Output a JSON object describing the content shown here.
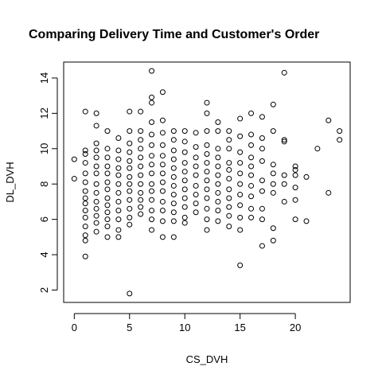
{
  "chart_data": {
    "type": "scatter",
    "title": "Comparing Delivery Time and Customer's Order",
    "xlabel": "CS_DVH",
    "ylabel": "DL_DVH",
    "xlim": [
      -0.96,
      24.96
    ],
    "ylim": [
      1.3,
      14.9
    ],
    "xticks": [
      0,
      5,
      10,
      15,
      20
    ],
    "yticks": [
      2,
      4,
      6,
      8,
      10,
      12,
      14
    ],
    "color": "#000000",
    "x": [
      0,
      0,
      1,
      1,
      1,
      1,
      1,
      1,
      1,
      1,
      1,
      1,
      1,
      1,
      1,
      1,
      1,
      2,
      2,
      2,
      2,
      2,
      2,
      2,
      2,
      2,
      2,
      2,
      2,
      2,
      2,
      3,
      3,
      3,
      3,
      3,
      3,
      3,
      3,
      3,
      3,
      3,
      3,
      3,
      4,
      4,
      4,
      4,
      4,
      4,
      4,
      4,
      4,
      4,
      4,
      4,
      5,
      5,
      5,
      5,
      5,
      5,
      5,
      5,
      5,
      5,
      5,
      5,
      5,
      5,
      6,
      6,
      6,
      6,
      6,
      6,
      6,
      6,
      6,
      6,
      6,
      6,
      7,
      7,
      7,
      7,
      7,
      7,
      7,
      7,
      7,
      7,
      7,
      7,
      7,
      7,
      7,
      8,
      8,
      8,
      8,
      8,
      8,
      8,
      8,
      8,
      8,
      8,
      8,
      8,
      9,
      9,
      9,
      9,
      9,
      9,
      9,
      9,
      9,
      9,
      9,
      9,
      10,
      10,
      10,
      10,
      10,
      10,
      10,
      10,
      10,
      10,
      10,
      11,
      11,
      11,
      11,
      11,
      11,
      11,
      11,
      11,
      12,
      12,
      12,
      12,
      12,
      12,
      12,
      12,
      12,
      12,
      12,
      12,
      12,
      13,
      13,
      13,
      13,
      13,
      13,
      13,
      13,
      13,
      13,
      13,
      14,
      14,
      14,
      14,
      14,
      14,
      14,
      14,
      14,
      14,
      14,
      15,
      15,
      15,
      15,
      15,
      15,
      15,
      15,
      15,
      15,
      15,
      16,
      16,
      16,
      16,
      16,
      16,
      16,
      16,
      16,
      16,
      17,
      17,
      17,
      17,
      17,
      17,
      17,
      17,
      17,
      18,
      18,
      18,
      18,
      18,
      18,
      18,
      18,
      19,
      19,
      19,
      19,
      19,
      19,
      20,
      20,
      20,
      20,
      20,
      20,
      21,
      21,
      22,
      23,
      23,
      24,
      24
    ],
    "y": [
      9.4,
      8.3,
      12.1,
      9.9,
      9.7,
      9.2,
      8.6,
      8.1,
      7.6,
      7.2,
      6.9,
      6.5,
      6.1,
      5.6,
      5.1,
      4.8,
      3.9,
      12.0,
      11.3,
      10.3,
      9.9,
      9.5,
      9.0,
      8.6,
      8.0,
      7.5,
      7.0,
      6.6,
      6.2,
      5.8,
      5.3,
      11.0,
      10.0,
      9.5,
      9.0,
      8.6,
      8.1,
      7.7,
      7.2,
      6.8,
      6.4,
      6.0,
      5.6,
      5.0,
      10.6,
      9.9,
      9.4,
      8.9,
      8.5,
      8.0,
      7.5,
      7.0,
      6.5,
      6.0,
      5.4,
      5.0,
      12.1,
      11.0,
      10.3,
      9.8,
      9.3,
      8.9,
      8.4,
      8.0,
      7.6,
      7.1,
      6.6,
      6.1,
      5.7,
      1.8,
      12.1,
      11.0,
      10.5,
      10.0,
      9.5,
      9.0,
      8.5,
      8.0,
      7.5,
      7.1,
      6.7,
      6.3,
      14.4,
      12.9,
      12.6,
      11.5,
      10.8,
      10.2,
      9.6,
      9.1,
      8.6,
      8.0,
      7.6,
      7.1,
      6.5,
      6.0,
      5.4,
      13.2,
      11.6,
      10.9,
      10.2,
      9.6,
      9.1,
      8.6,
      8.1,
      7.6,
      7.0,
      6.5,
      5.9,
      5.0,
      11.0,
      10.5,
      9.9,
      9.4,
      8.9,
      8.4,
      7.9,
      7.4,
      6.9,
      6.4,
      5.9,
      5.0,
      11.0,
      10.4,
      9.8,
      9.2,
      8.7,
      8.2,
      7.7,
      7.2,
      6.7,
      6.1,
      5.8,
      10.9,
      10.1,
      9.5,
      9.0,
      8.5,
      7.9,
      7.4,
      6.9,
      6.4,
      12.6,
      12.0,
      11.0,
      10.2,
      9.7,
      9.2,
      8.7,
      8.2,
      7.7,
      7.2,
      6.6,
      6.0,
      5.4,
      11.5,
      11.0,
      10.0,
      9.5,
      9.0,
      8.5,
      8.0,
      7.5,
      7.0,
      6.5,
      5.9,
      11.0,
      10.5,
      10.0,
      9.2,
      8.8,
      8.3,
      7.7,
      7.2,
      6.7,
      6.2,
      5.6,
      11.7,
      10.7,
      9.8,
      9.2,
      8.6,
      8.0,
      7.4,
      6.8,
      6.1,
      5.4,
      3.4,
      12.0,
      10.8,
      10.2,
      9.5,
      9.0,
      8.5,
      7.9,
      7.3,
      6.6,
      6.1,
      11.8,
      10.6,
      10.0,
      9.3,
      8.2,
      7.6,
      6.6,
      6.0,
      4.5,
      12.5,
      11.0,
      9.1,
      8.6,
      8.0,
      7.5,
      5.5,
      4.8,
      14.3,
      10.5,
      10.4,
      8.5,
      8.0,
      7.0,
      9.0,
      8.8,
      8.5,
      7.8,
      7.1,
      6.0,
      8.4,
      5.9,
      10.0,
      11.6,
      7.5,
      11.0,
      10.5
    ]
  }
}
